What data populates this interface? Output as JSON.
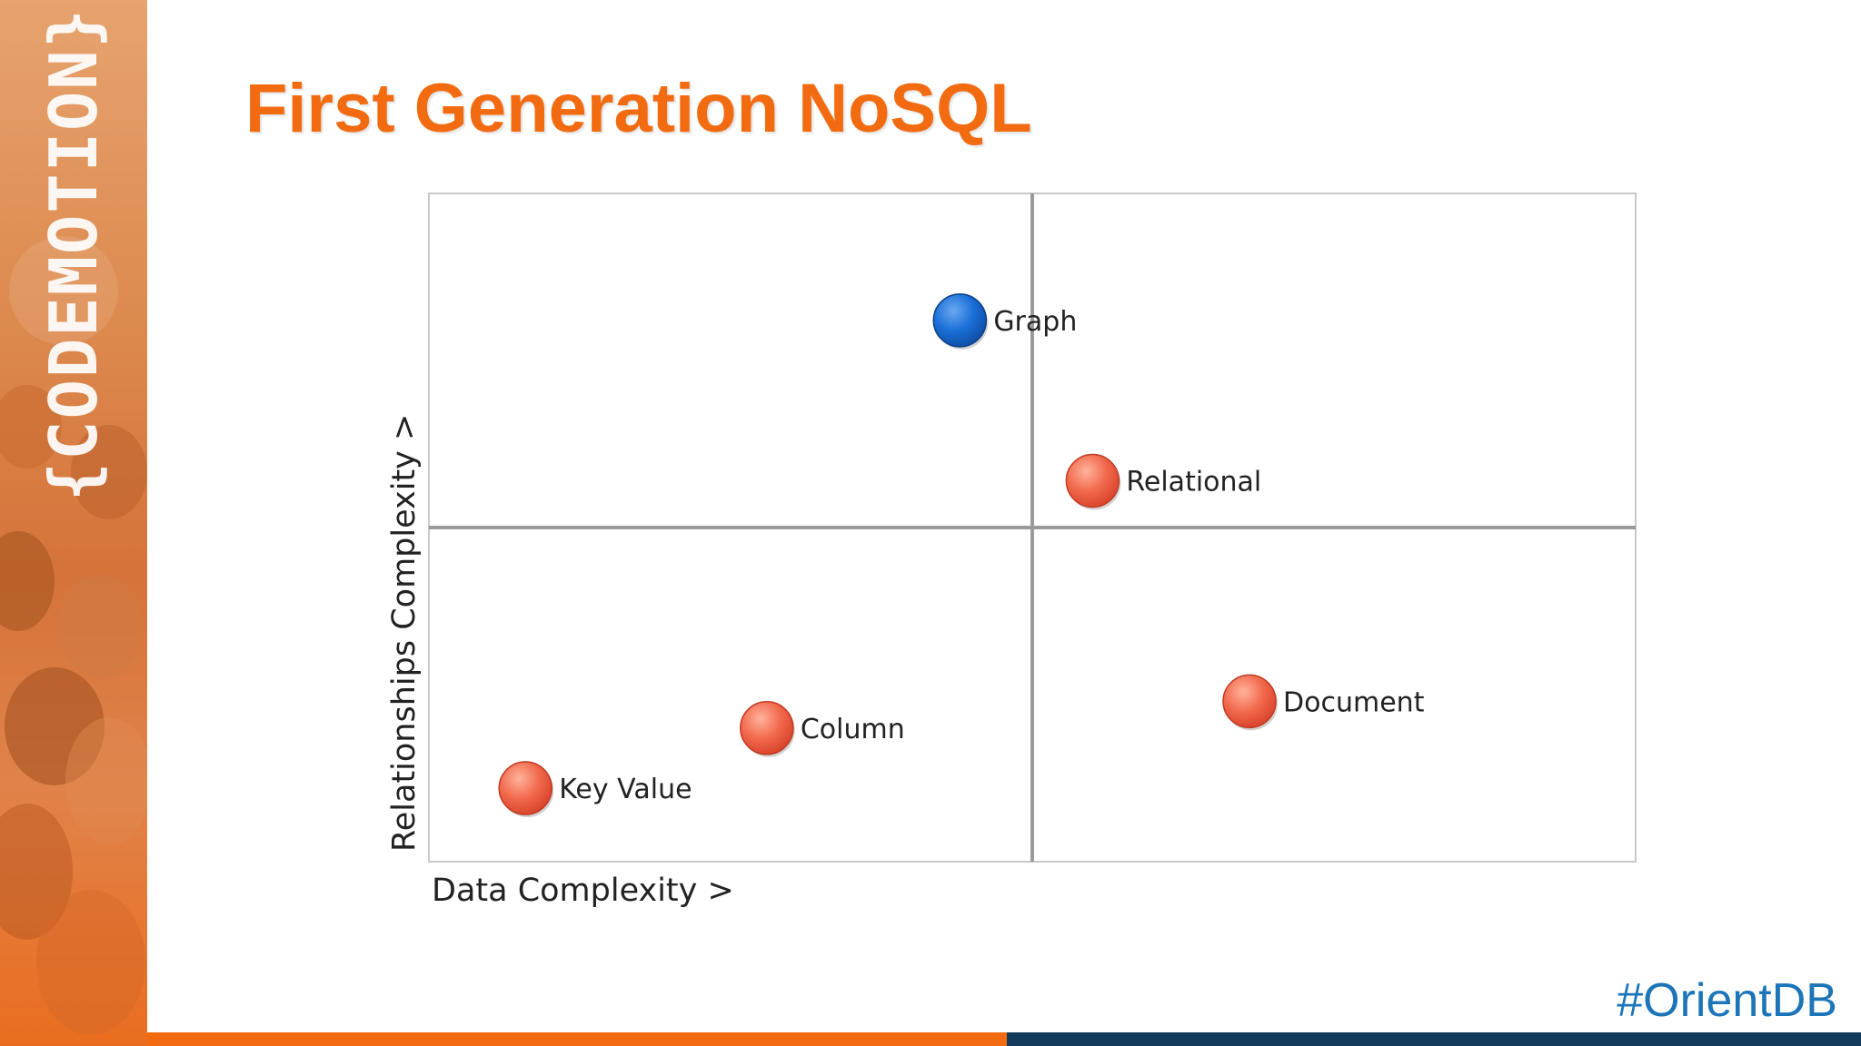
{
  "slide": {
    "title": "First Generation NoSQL",
    "hashtag": "#OrientDB",
    "logo_text": "{CODEMOTION}"
  },
  "colors": {
    "title": "#f26b10",
    "hashtag": "#1b75b8",
    "highlight_point": "#1a6fd6",
    "default_point": "#f2694d",
    "bar_left": "#f26b10",
    "bar_right": "#123a5c"
  },
  "chart_data": {
    "type": "scatter",
    "xlabel": "Data Complexity >",
    "ylabel": "Relationships Complexity >",
    "xlim": [
      0,
      10
    ],
    "ylim": [
      0,
      10
    ],
    "quadrant_divider": {
      "x": 5,
      "y": 5
    },
    "grid": false,
    "points": [
      {
        "label": "Graph",
        "x": 4.4,
        "y": 8.1,
        "highlight": true
      },
      {
        "label": "Relational",
        "x": 5.5,
        "y": 5.7,
        "highlight": false
      },
      {
        "label": "Document",
        "x": 6.8,
        "y": 2.4,
        "highlight": false
      },
      {
        "label": "Column",
        "x": 2.8,
        "y": 2.0,
        "highlight": false
      },
      {
        "label": "Key Value",
        "x": 0.8,
        "y": 1.1,
        "highlight": false
      }
    ]
  }
}
